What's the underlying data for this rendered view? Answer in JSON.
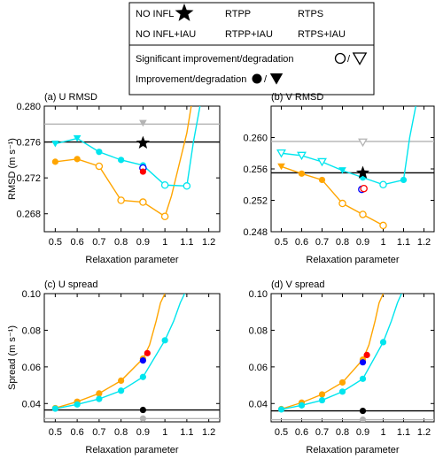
{
  "legend": {
    "rows": [
      [
        {
          "label": "NO INFL",
          "marker": "star",
          "color": "#000000"
        },
        {
          "label": "RTPP",
          "marker": "circle",
          "color": "#ff0000"
        },
        {
          "label": "RTPS",
          "marker": "circle",
          "color": "#0000ff"
        }
      ],
      [
        {
          "label": "NO INFL+IAU",
          "marker": "circle",
          "color": "#b4b4b4"
        },
        {
          "label": "RTPP+IAU",
          "marker": "circle",
          "color": "#ffa500"
        },
        {
          "label": "RTPS+IAU",
          "marker": "circle",
          "color": "#00e5ee"
        }
      ]
    ],
    "significant_label": "Significant improvement/degradation",
    "improvement_label": "Improvement/degradation",
    "slash": "/"
  },
  "colors": {
    "no_infl": "#000000",
    "no_infl_iau": "#b4b4b4",
    "rtpp": "#ff0000",
    "rtps": "#0000ff",
    "rtpp_iau": "#ffa500",
    "rtps_iau": "#00e5ee"
  },
  "chart_data": [
    {
      "type": "line",
      "title": "(a) U RMSD",
      "ylabel": "RMSD (m s⁻¹)",
      "xlabel": "Relaxation parameter",
      "xlim": [
        0.45,
        1.25
      ],
      "ylim": [
        0.266,
        0.28
      ],
      "xticks": [
        0.5,
        0.6,
        0.7,
        0.8,
        0.9,
        1.0,
        1.1,
        1.2
      ],
      "xtick_labels": [
        "0.5",
        "0.6",
        "0.7",
        "0.8",
        "0.9",
        "1",
        "1.1",
        "1.2"
      ],
      "yticks": [
        0.268,
        0.272,
        0.276,
        0.28
      ],
      "ytick_labels": [
        "0.268",
        "0.272",
        "0.276",
        "0.280"
      ],
      "hlines": [
        {
          "name": "NO INFL",
          "y": 0.276,
          "color": "#000000"
        },
        {
          "name": "NO INFL+IAU",
          "y": 0.278,
          "color": "#b4b4b4"
        }
      ],
      "series": [
        {
          "name": "RTPP+IAU",
          "color": "#ffa500",
          "x": [
            0.5,
            0.6,
            0.7,
            0.8,
            0.9,
            1.0,
            1.03,
            1.06,
            1.08,
            1.1,
            1.12
          ],
          "y": [
            0.2738,
            0.2741,
            0.2733,
            0.2695,
            0.2693,
            0.2677,
            0.27,
            0.273,
            0.275,
            0.277,
            0.28
          ],
          "markers": [
            "filled",
            "filled",
            "open",
            "open",
            "open",
            "open"
          ]
        },
        {
          "name": "RTPS+IAU",
          "color": "#00e5ee",
          "x": [
            0.5,
            0.6,
            0.7,
            0.8,
            0.9,
            1.0,
            1.1,
            1.13,
            1.16
          ],
          "y": [
            0.2758,
            0.2764,
            0.2749,
            0.274,
            0.2734,
            0.2712,
            0.2711,
            0.276,
            0.28
          ],
          "markers": [
            "filled-down",
            "filled-down",
            "filled",
            "filled",
            "filled",
            "open",
            "open"
          ]
        }
      ],
      "points": [
        {
          "name": "NO INFL+IAU",
          "x": 0.9,
          "y": 0.2781,
          "marker": "filled-down",
          "color": "#b4b4b4"
        },
        {
          "name": "NO INFL",
          "x": 0.9,
          "y": 0.2759,
          "marker": "star",
          "color": "#000000"
        },
        {
          "name": "RTPS",
          "x": 0.9,
          "y": 0.2731,
          "marker": "open",
          "color": "#0000ff"
        },
        {
          "name": "RTPP",
          "x": 0.9,
          "y": 0.2727,
          "marker": "filled",
          "color": "#ff0000"
        }
      ]
    },
    {
      "type": "line",
      "title": "(b) V RMSD",
      "ylabel": "",
      "xlabel": "Relaxation parameter",
      "xlim": [
        0.45,
        1.25
      ],
      "ylim": [
        0.248,
        0.264
      ],
      "xticks": [
        0.5,
        0.6,
        0.7,
        0.8,
        0.9,
        1.0,
        1.1,
        1.2
      ],
      "xtick_labels": [
        "0.5",
        "0.6",
        "0.7",
        "0.8",
        "0.9",
        "1",
        "1.1",
        "1.2"
      ],
      "yticks": [
        0.248,
        0.252,
        0.256,
        0.26
      ],
      "ytick_labels": [
        "0.248",
        "0.252",
        "0.256",
        "0.260"
      ],
      "hlines": [
        {
          "name": "NO INFL",
          "y": 0.2555,
          "color": "#000000"
        },
        {
          "name": "NO INFL+IAU",
          "y": 0.2595,
          "color": "#b4b4b4"
        }
      ],
      "series": [
        {
          "name": "RTPP+IAU",
          "color": "#ffa500",
          "x": [
            0.5,
            0.6,
            0.7,
            0.8,
            0.9,
            1.0
          ],
          "y": [
            0.2563,
            0.2554,
            0.2546,
            0.2516,
            0.2502,
            0.2488
          ],
          "markers": [
            "filled-down",
            "filled",
            "filled",
            "open",
            "open",
            "open"
          ]
        },
        {
          "name": "RTPS+IAU",
          "color": "#00e5ee",
          "x": [
            0.5,
            0.6,
            0.7,
            0.8,
            0.9,
            1.0,
            1.1,
            1.13,
            1.16
          ],
          "y": [
            0.258,
            0.2577,
            0.2569,
            0.2558,
            0.2549,
            0.254,
            0.2546,
            0.26,
            0.264
          ],
          "markers": [
            "open-down",
            "open-down",
            "open-down",
            "filled-down",
            "filled",
            "open",
            "filled"
          ]
        }
      ],
      "points": [
        {
          "name": "NO INFL+IAU",
          "x": 0.9,
          "y": 0.2594,
          "marker": "open-down",
          "color": "#b4b4b4"
        },
        {
          "name": "NO INFL",
          "x": 0.9,
          "y": 0.2555,
          "marker": "star",
          "color": "#000000"
        },
        {
          "name": "RTPS",
          "x": 0.895,
          "y": 0.2534,
          "marker": "open",
          "color": "#0000ff"
        },
        {
          "name": "RTPP",
          "x": 0.905,
          "y": 0.2535,
          "marker": "open",
          "color": "#ff0000"
        }
      ]
    },
    {
      "type": "line",
      "title": "(c) U spread",
      "ylabel": "Spread (m s⁻¹)",
      "xlabel": "Relaxation parameter",
      "xlim": [
        0.45,
        1.25
      ],
      "ylim": [
        0.03,
        0.1
      ],
      "xticks": [
        0.5,
        0.6,
        0.7,
        0.8,
        0.9,
        1.0,
        1.1,
        1.2
      ],
      "xtick_labels": [
        "0.5",
        "0.6",
        "0.7",
        "0.8",
        "0.9",
        "1",
        "1.1",
        "1.2"
      ],
      "yticks": [
        0.04,
        0.06,
        0.08,
        0.1
      ],
      "ytick_labels": [
        "0.04",
        "0.06",
        "0.08",
        "0.10"
      ],
      "hlines": [
        {
          "name": "NO INFL",
          "y": 0.0365,
          "color": "#000000"
        },
        {
          "name": "NO INFL+IAU",
          "y": 0.0318,
          "color": "#b4b4b4"
        }
      ],
      "series": [
        {
          "name": "RTPP+IAU",
          "color": "#ffa500",
          "x": [
            0.5,
            0.6,
            0.7,
            0.8,
            0.9,
            0.93,
            0.96,
            0.98,
            1.0
          ],
          "y": [
            0.0375,
            0.041,
            0.0455,
            0.0525,
            0.0645,
            0.072,
            0.085,
            0.095,
            0.1
          ],
          "markers": [
            "filled",
            "filled",
            "filled",
            "filled",
            "filled"
          ]
        },
        {
          "name": "RTPS+IAU",
          "color": "#00e5ee",
          "x": [
            0.5,
            0.6,
            0.7,
            0.8,
            0.9,
            1.0,
            1.04,
            1.07,
            1.09
          ],
          "y": [
            0.0372,
            0.0395,
            0.0425,
            0.047,
            0.0545,
            0.0745,
            0.085,
            0.095,
            0.1
          ],
          "markers": [
            "filled",
            "filled",
            "filled",
            "filled",
            "filled",
            "filled"
          ]
        }
      ],
      "points": [
        {
          "name": "NO INFL+IAU",
          "x": 0.9,
          "y": 0.0318,
          "marker": "filled",
          "color": "#b4b4b4"
        },
        {
          "name": "NO INFL",
          "x": 0.9,
          "y": 0.0365,
          "marker": "filled",
          "color": "#000000"
        },
        {
          "name": "RTPS",
          "x": 0.9,
          "y": 0.0635,
          "marker": "filled",
          "color": "#0000ff"
        },
        {
          "name": "RTPP",
          "x": 0.92,
          "y": 0.0675,
          "marker": "filled",
          "color": "#ff0000"
        }
      ]
    },
    {
      "type": "line",
      "title": "(d) V spread",
      "ylabel": "",
      "xlabel": "Relaxation parameter",
      "xlim": [
        0.45,
        1.25
      ],
      "ylim": [
        0.03,
        0.1
      ],
      "xticks": [
        0.5,
        0.6,
        0.7,
        0.8,
        0.9,
        1.0,
        1.1,
        1.2
      ],
      "xtick_labels": [
        "0.5",
        "0.6",
        "0.7",
        "0.8",
        "0.9",
        "1",
        "1.1",
        "1.2"
      ],
      "yticks": [
        0.04,
        0.06,
        0.08,
        0.1
      ],
      "ytick_labels": [
        "0.04",
        "0.06",
        "0.08",
        "0.10"
      ],
      "hlines": [
        {
          "name": "NO INFL",
          "y": 0.036,
          "color": "#000000"
        },
        {
          "name": "NO INFL+IAU",
          "y": 0.0312,
          "color": "#b4b4b4"
        }
      ],
      "series": [
        {
          "name": "RTPP+IAU",
          "color": "#ffa500",
          "x": [
            0.5,
            0.6,
            0.7,
            0.8,
            0.9,
            0.93,
            0.96,
            0.98,
            1.0
          ],
          "y": [
            0.037,
            0.0405,
            0.045,
            0.0515,
            0.064,
            0.072,
            0.085,
            0.095,
            0.1
          ],
          "markers": [
            "filled",
            "filled",
            "filled",
            "filled",
            "filled"
          ]
        },
        {
          "name": "RTPS+IAU",
          "color": "#00e5ee",
          "x": [
            0.5,
            0.6,
            0.7,
            0.8,
            0.9,
            1.0,
            1.04,
            1.07,
            1.09
          ],
          "y": [
            0.0368,
            0.039,
            0.0418,
            0.0465,
            0.0535,
            0.0735,
            0.085,
            0.095,
            0.1
          ],
          "markers": [
            "filled",
            "filled",
            "filled",
            "filled",
            "filled",
            "filled"
          ]
        }
      ],
      "points": [
        {
          "name": "NO INFL+IAU",
          "x": 0.9,
          "y": 0.0312,
          "marker": "filled",
          "color": "#b4b4b4"
        },
        {
          "name": "NO INFL",
          "x": 0.9,
          "y": 0.036,
          "marker": "filled",
          "color": "#000000"
        },
        {
          "name": "RTPS",
          "x": 0.9,
          "y": 0.0625,
          "marker": "filled",
          "color": "#0000ff"
        },
        {
          "name": "RTPP",
          "x": 0.92,
          "y": 0.0665,
          "marker": "filled",
          "color": "#ff0000"
        }
      ]
    }
  ]
}
